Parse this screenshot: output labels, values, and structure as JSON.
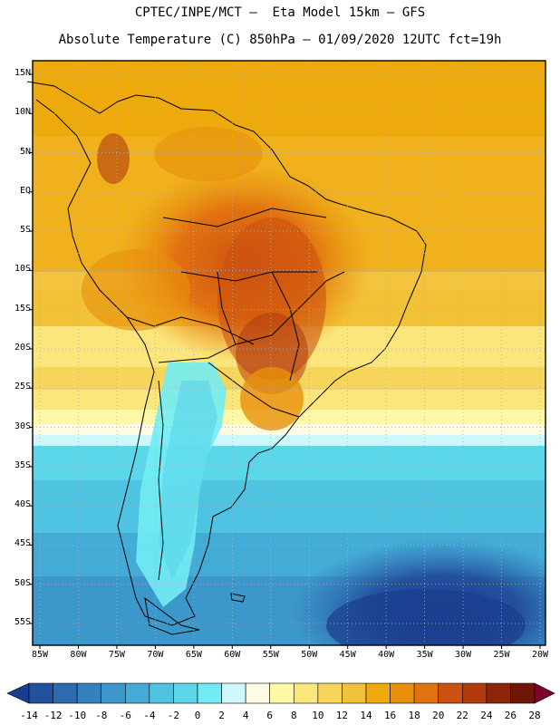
{
  "header": {
    "title_line1": "CPTEC/INPE/MCT –  Eta Model 15km – GFS",
    "title_line2": "Absolute Temperature (C) 850hPa – 01/09/2020 12UTC fct=19h"
  },
  "map": {
    "lat_labels": [
      "15N",
      "10N",
      "5N",
      "EQ",
      "5S",
      "10S",
      "15S",
      "20S",
      "25S",
      "30S",
      "35S",
      "40S",
      "45S",
      "50S",
      "55S"
    ],
    "lon_labels": [
      "85W",
      "80W",
      "75W",
      "70W",
      "65W",
      "60W",
      "55W",
      "50W",
      "45W",
      "40W",
      "35W",
      "30W",
      "25W",
      "20W"
    ],
    "lat_values": [
      15,
      10,
      5,
      0,
      -5,
      -10,
      -15,
      -20,
      -25,
      -30,
      -35,
      -40,
      -45,
      -50,
      -55
    ],
    "lon_values": [
      -85,
      -80,
      -75,
      -70,
      -65,
      -60,
      -55,
      -50,
      -45,
      -40,
      -35,
      -30,
      -25,
      -20
    ],
    "gridlines": "dotted"
  },
  "colorbar": {
    "labels": [
      "-14",
      "-12",
      "-10",
      "-8",
      "-6",
      "-4",
      "-2",
      "0",
      "2",
      "4",
      "6",
      "8",
      "10",
      "12",
      "14",
      "16",
      "18",
      "20",
      "22",
      "24",
      "26",
      "28"
    ],
    "colors": [
      "#1b3d8f",
      "#23519e",
      "#2d6aae",
      "#3580be",
      "#3c98cb",
      "#44abd6",
      "#4fc3e2",
      "#5cd7ea",
      "#72ecf4",
      "#cdf7fa",
      "#fffbe3",
      "#fff8a6",
      "#fbe67b",
      "#f7d45a",
      "#f1c13c",
      "#eeaa0c",
      "#e8900c",
      "#e27210",
      "#cc5210",
      "#b03a0e",
      "#8f2508",
      "#6f1607",
      "#7d0630"
    ]
  }
}
